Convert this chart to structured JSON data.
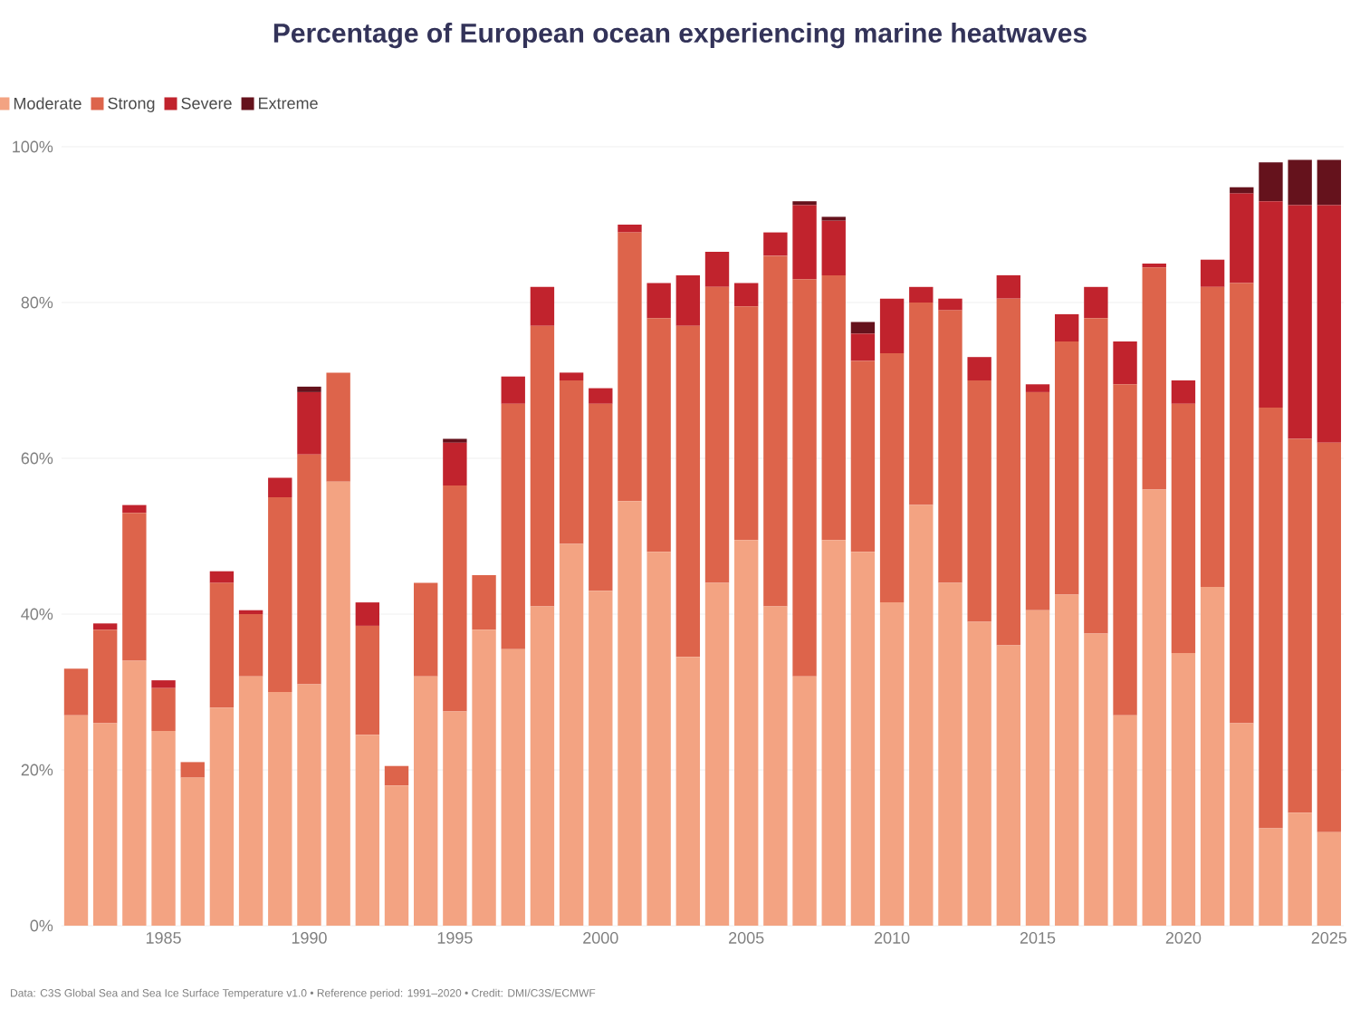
{
  "chart_data": {
    "type": "bar",
    "stacked": true,
    "title": "Percentage of European ocean experiencing marine heatwaves",
    "categories": [
      null,
      null,
      null,
      "1985",
      null,
      null,
      null,
      null,
      "1990",
      null,
      null,
      null,
      null,
      "1995",
      null,
      null,
      null,
      null,
      "2000",
      null,
      null,
      null,
      null,
      "2005",
      null,
      null,
      null,
      null,
      "2010",
      null,
      null,
      null,
      null,
      "2015",
      null,
      null,
      null,
      null,
      "2020",
      null,
      null,
      null,
      null,
      "2025"
    ],
    "series": [
      {
        "name": "Moderate",
        "color": "#f3a382",
        "values": [
          27,
          26,
          34,
          25,
          19,
          28,
          32,
          30,
          31,
          57,
          24.5,
          18,
          32,
          27.5,
          38,
          35.5,
          41,
          49,
          43,
          54.5,
          48,
          34.5,
          44,
          49.5,
          41,
          32,
          49.5,
          48,
          41.5,
          54,
          44,
          39,
          36,
          40.5,
          42.5,
          37.5,
          27,
          56,
          35,
          43.5,
          26,
          12.5,
          14.5,
          12
        ]
      },
      {
        "name": "Strong",
        "color": "#dd644b",
        "values": [
          6,
          12,
          19,
          5.5,
          2,
          16,
          8,
          25,
          29.5,
          14,
          14,
          2.5,
          12,
          29,
          7,
          31.5,
          36,
          21,
          24,
          34.5,
          30,
          42.5,
          38,
          30,
          45,
          51,
          34,
          24.5,
          32,
          26,
          35,
          31,
          44.5,
          28,
          32.5,
          40.5,
          42.5,
          28.5,
          32,
          38.5,
          56.5,
          54,
          48,
          50
        ]
      },
      {
        "name": "Severe",
        "color": "#c1232d",
        "values": [
          0,
          0.8,
          1,
          1,
          0,
          1.5,
          0.5,
          2.5,
          8,
          0,
          3,
          0,
          0,
          5.5,
          0,
          3.5,
          5,
          1,
          2,
          1,
          4.5,
          6.5,
          4.5,
          3,
          3,
          9.5,
          7,
          3.5,
          7,
          2,
          1.5,
          3,
          3,
          1,
          3.5,
          4,
          5.5,
          0.5,
          3,
          3.5,
          11.5,
          26.5,
          30,
          30.5
        ]
      },
      {
        "name": "Extreme",
        "color": "#65121c",
        "values": [
          0,
          0,
          0,
          0,
          0,
          0,
          0,
          0,
          0.7,
          0,
          0,
          0,
          0,
          0.5,
          0,
          0,
          0,
          0,
          0,
          0,
          0,
          0,
          0,
          0,
          0,
          0.5,
          0.5,
          1.5,
          0,
          0,
          0,
          0,
          0,
          0,
          0,
          0,
          0,
          0,
          0,
          0,
          0.8,
          5,
          5.8,
          5.8
        ]
      }
    ],
    "ylim": [
      0,
      100
    ],
    "yticks": [
      {
        "value": 0,
        "label": "0%"
      },
      {
        "value": 20,
        "label": "20%"
      },
      {
        "value": 40,
        "label": "40%"
      },
      {
        "value": 60,
        "label": "60%"
      },
      {
        "value": 80,
        "label": "80%"
      },
      {
        "value": 100,
        "label": "100%"
      }
    ],
    "grid": "y",
    "legend": "top left",
    "annotations": [
      "Data: C3S Global Sea and Sea Ice Surface Temperature v1.0 • Reference period: 1991–2020 • Credit: DMI/C3S/ECMWF"
    ]
  }
}
